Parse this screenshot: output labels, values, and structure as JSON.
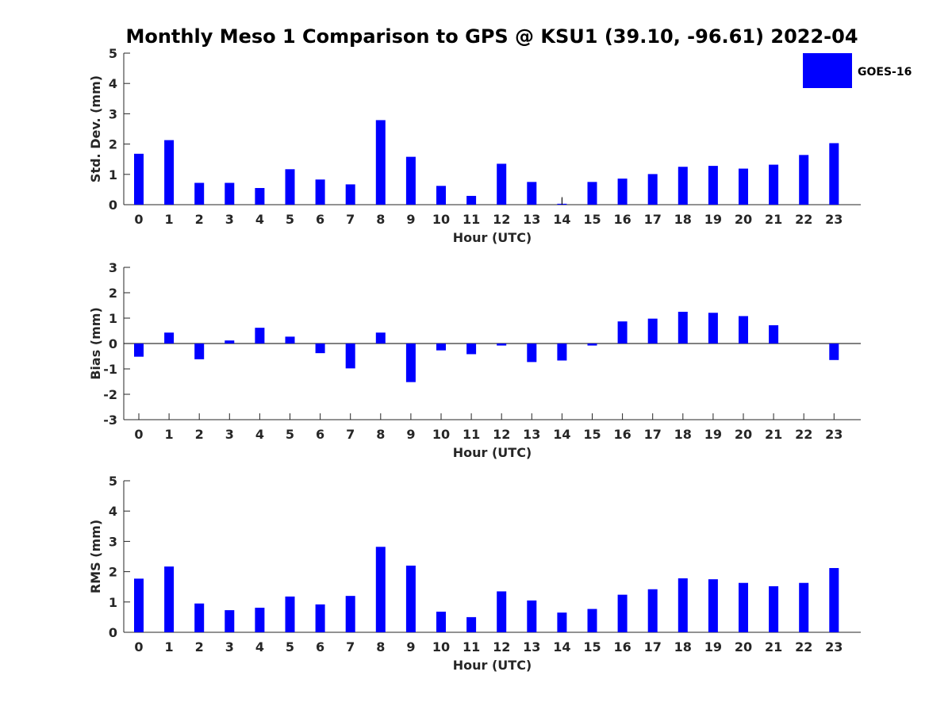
{
  "figure_title": "Monthly Meso 1 Comparison to GPS @ KSU1 (39.10, -96.61) 2022-04",
  "legend": {
    "label": "GOES-16",
    "color": "#0000ff"
  },
  "chart_data": [
    {
      "type": "bar",
      "xlabel": "Hour (UTC)",
      "ylabel": "Std. Dev. (mm)",
      "ylim": [
        0,
        5
      ],
      "yticks": [
        0,
        1,
        2,
        3,
        4,
        5
      ],
      "categories": [
        "0",
        "1",
        "2",
        "3",
        "4",
        "5",
        "6",
        "7",
        "8",
        "9",
        "10",
        "11",
        "12",
        "13",
        "14",
        "15",
        "16",
        "17",
        "18",
        "19",
        "20",
        "21",
        "22",
        "23"
      ],
      "series": [
        {
          "name": "GOES-16",
          "color": "#0000ff",
          "values": [
            1.68,
            2.13,
            0.72,
            0.72,
            0.55,
            1.17,
            0.83,
            0.67,
            2.79,
            1.58,
            0.62,
            0.29,
            1.35,
            0.75,
            0.03,
            0.75,
            0.86,
            1.01,
            1.25,
            1.28,
            1.19,
            1.32,
            1.64,
            2.03
          ]
        }
      ],
      "error_marks": [
        {
          "category": "14",
          "low": 0.0,
          "high": 0.25
        }
      ]
    },
    {
      "type": "bar",
      "xlabel": "Hour (UTC)",
      "ylabel": "Bias (mm)",
      "ylim": [
        -3,
        3
      ],
      "yticks": [
        -3,
        -2,
        -1,
        0,
        1,
        2,
        3
      ],
      "categories": [
        "0",
        "1",
        "2",
        "3",
        "4",
        "5",
        "6",
        "7",
        "8",
        "9",
        "10",
        "11",
        "12",
        "13",
        "14",
        "15",
        "16",
        "17",
        "18",
        "19",
        "20",
        "21",
        "22",
        "23"
      ],
      "series": [
        {
          "name": "GOES-16",
          "color": "#0000ff",
          "values": [
            -0.52,
            0.43,
            -0.62,
            0.12,
            0.62,
            0.27,
            -0.38,
            -0.98,
            0.43,
            -1.52,
            -0.27,
            -0.42,
            -0.08,
            -0.73,
            -0.67,
            -0.08,
            0.87,
            0.98,
            1.25,
            1.21,
            1.08,
            0.72,
            0.0,
            -0.65
          ]
        }
      ]
    },
    {
      "type": "bar",
      "xlabel": "Hour (UTC)",
      "ylabel": "RMS (mm)",
      "ylim": [
        0,
        5
      ],
      "yticks": [
        0,
        1,
        2,
        3,
        4,
        5
      ],
      "categories": [
        "0",
        "1",
        "2",
        "3",
        "4",
        "5",
        "6",
        "7",
        "8",
        "9",
        "10",
        "11",
        "12",
        "13",
        "14",
        "15",
        "16",
        "17",
        "18",
        "19",
        "20",
        "21",
        "22",
        "23"
      ],
      "series": [
        {
          "name": "GOES-16",
          "color": "#0000ff",
          "values": [
            1.77,
            2.17,
            0.95,
            0.73,
            0.81,
            1.18,
            0.92,
            1.2,
            2.82,
            2.2,
            0.68,
            0.5,
            1.35,
            1.05,
            0.65,
            0.77,
            1.24,
            1.42,
            1.78,
            1.75,
            1.63,
            1.52,
            1.63,
            2.12
          ]
        }
      ]
    }
  ]
}
